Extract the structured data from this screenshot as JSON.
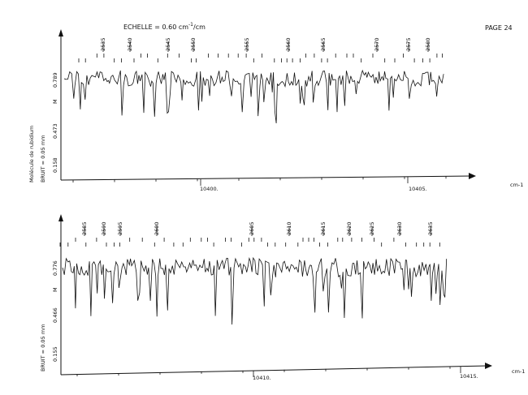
{
  "header": {
    "scale_label": "ECHELLE = 0.60 cm",
    "scale_superscript": "-1",
    "scale_suffix": "/cm",
    "page": "PAGE 24"
  },
  "side_labels": {
    "molecule": "Molécule de rubidium",
    "noise": "BRUIT = 0.05 mm"
  },
  "chart_data": [
    {
      "type": "line",
      "title": "",
      "x_unit": "cm-1",
      "x_ticks": [
        "10400.",
        "10405."
      ],
      "y_ticks": [
        "0.158",
        "0.473",
        "0.789"
      ],
      "y_marker": "M",
      "line_numbers": [
        "2535",
        "2540",
        "2545",
        "2550",
        "2555",
        "2560",
        "2565",
        "2570",
        "2575",
        "2580"
      ],
      "grid": false
    },
    {
      "type": "line",
      "title": "",
      "x_unit": "cm-1",
      "x_ticks": [
        "10410.",
        "10415."
      ],
      "y_ticks": [
        "0.155",
        "0.466",
        "0.776"
      ],
      "y_marker": "M",
      "line_numbers": [
        "2585",
        "2590",
        "2595",
        "2600",
        "2605",
        "2610",
        "2615",
        "2620",
        "2625",
        "2630",
        "2635"
      ],
      "grid": false
    }
  ]
}
